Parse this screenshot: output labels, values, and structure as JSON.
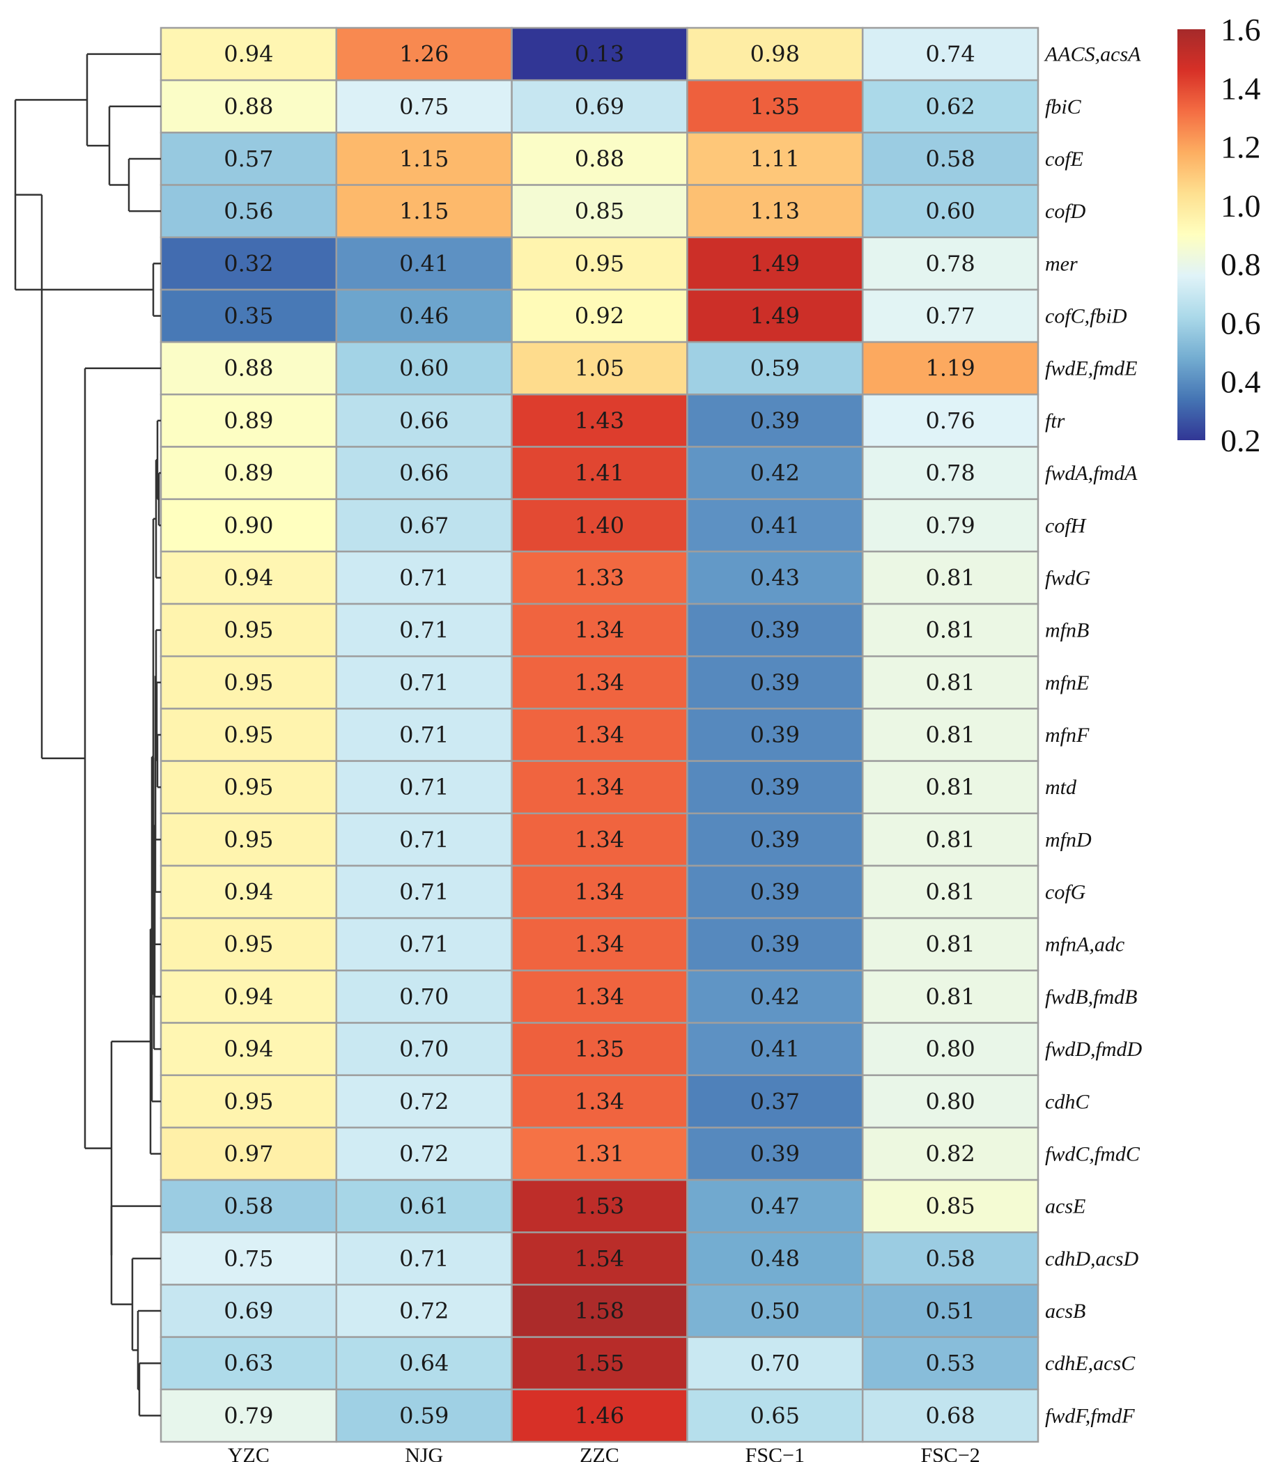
{
  "chart_data": {
    "type": "heatmap",
    "columns": [
      "YZC",
      "NJG",
      "ZZC",
      "FSC−1",
      "FSC−2"
    ],
    "rows": [
      "AACS,acsA",
      "fbiC",
      "cofE",
      "cofD",
      "mer",
      "cofC,fbiD",
      "fwdE,fmdE",
      "ftr",
      "fwdA,fmdA",
      "cofH",
      "fwdG",
      "mfnB",
      "mfnE",
      "mfnF",
      "mtd",
      "mfnD",
      "cofG",
      "mfnA,adc",
      "fwdB,fmdB",
      "fwdD,fmdD",
      "cdhC",
      "fwdC,fmdC",
      "acsE",
      "cdhD,acsD",
      "acsB",
      "cdhE,acsC",
      "fwdF,fmdF"
    ],
    "values": [
      [
        "0.94",
        "1.26",
        "0.13",
        "0.98",
        "0.74"
      ],
      [
        "0.88",
        "0.75",
        "0.69",
        "1.35",
        "0.62"
      ],
      [
        "0.57",
        "1.15",
        "0.88",
        "1.11",
        "0.58"
      ],
      [
        "0.56",
        "1.15",
        "0.85",
        "1.13",
        "0.60"
      ],
      [
        "0.32",
        "0.41",
        "0.95",
        "1.49",
        "0.78"
      ],
      [
        "0.35",
        "0.46",
        "0.92",
        "1.49",
        "0.77"
      ],
      [
        "0.88",
        "0.60",
        "1.05",
        "0.59",
        "1.19"
      ],
      [
        "0.89",
        "0.66",
        "1.43",
        "0.39",
        "0.76"
      ],
      [
        "0.89",
        "0.66",
        "1.41",
        "0.42",
        "0.78"
      ],
      [
        "0.90",
        "0.67",
        "1.40",
        "0.41",
        "0.79"
      ],
      [
        "0.94",
        "0.71",
        "1.33",
        "0.43",
        "0.81"
      ],
      [
        "0.95",
        "0.71",
        "1.34",
        "0.39",
        "0.81"
      ],
      [
        "0.95",
        "0.71",
        "1.34",
        "0.39",
        "0.81"
      ],
      [
        "0.95",
        "0.71",
        "1.34",
        "0.39",
        "0.81"
      ],
      [
        "0.95",
        "0.71",
        "1.34",
        "0.39",
        "0.81"
      ],
      [
        "0.95",
        "0.71",
        "1.34",
        "0.39",
        "0.81"
      ],
      [
        "0.94",
        "0.71",
        "1.34",
        "0.39",
        "0.81"
      ],
      [
        "0.95",
        "0.71",
        "1.34",
        "0.39",
        "0.81"
      ],
      [
        "0.94",
        "0.70",
        "1.34",
        "0.42",
        "0.81"
      ],
      [
        "0.94",
        "0.70",
        "1.35",
        "0.41",
        "0.80"
      ],
      [
        "0.95",
        "0.72",
        "1.34",
        "0.37",
        "0.80"
      ],
      [
        "0.97",
        "0.72",
        "1.31",
        "0.39",
        "0.82"
      ],
      [
        "0.58",
        "0.61",
        "1.53",
        "0.47",
        "0.85"
      ],
      [
        "0.75",
        "0.71",
        "1.54",
        "0.48",
        "0.58"
      ],
      [
        "0.69",
        "0.72",
        "1.58",
        "0.50",
        "0.51"
      ],
      [
        "0.63",
        "0.64",
        "1.55",
        "0.70",
        "0.53"
      ],
      [
        "0.79",
        "0.59",
        "1.46",
        "0.65",
        "0.68"
      ]
    ],
    "colorbar": {
      "min": 0.2,
      "max": 1.6,
      "ticks": [
        "1.6",
        "1.4",
        "1.2",
        "1.0",
        "0.8",
        "0.6",
        "0.4",
        "0.2"
      ],
      "colors": [
        "#a52a2a",
        "#d73027",
        "#f46d43",
        "#fdae61",
        "#fee090",
        "#ffffbf",
        "#e0f3f8",
        "#abd9e9",
        "#74add1",
        "#4575b4",
        "#313695"
      ]
    },
    "dendrogram": "row clustering tree on left side",
    "title": "",
    "xlabel": "",
    "ylabel": ""
  }
}
